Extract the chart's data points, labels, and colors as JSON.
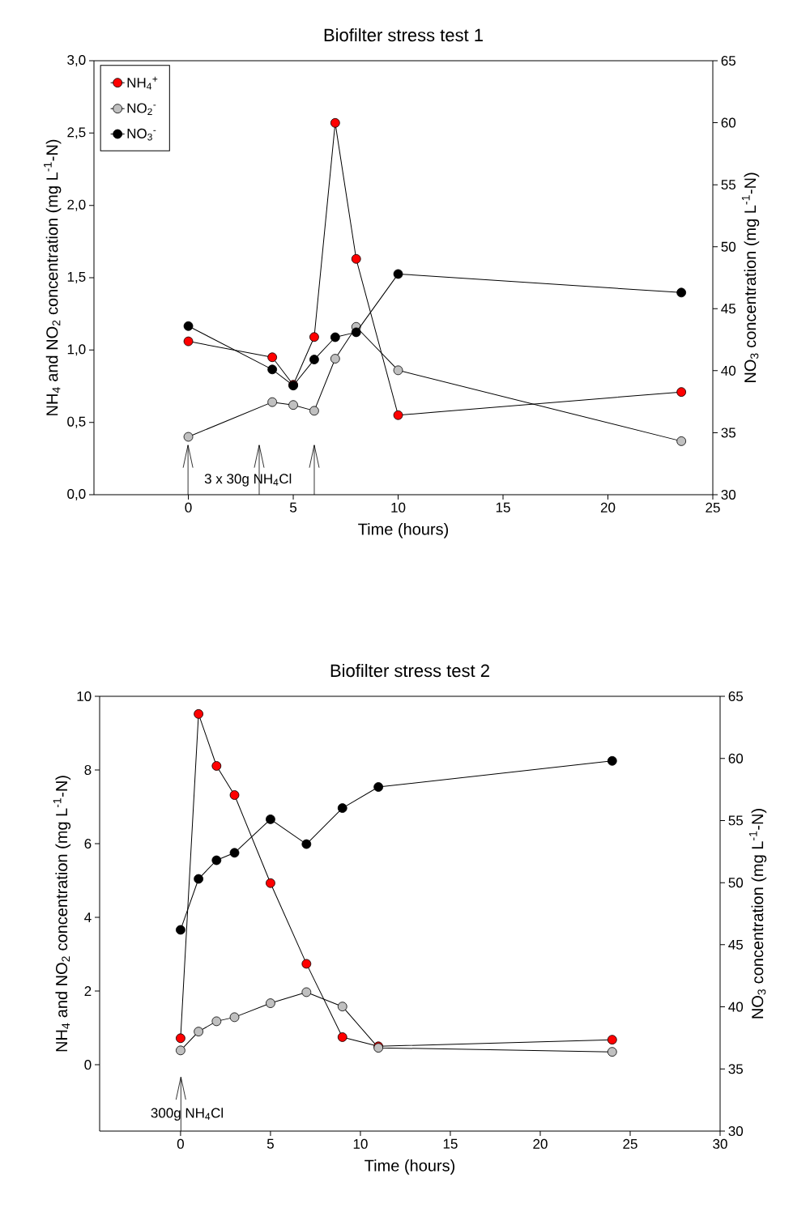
{
  "chart_data": [
    {
      "type": "line",
      "title": "Biofilter stress test 1",
      "xlabel": "Time (hours)",
      "ylabel": "NH$_{4}$ and NO$_{2}$ concentration (mg L$^{-1}$-N)",
      "y2label": "NO$_{3}$ concentration (mg L$^{-1}$-N)",
      "xlim": [
        -4.5,
        25
      ],
      "xticks": [
        0,
        5,
        10,
        15,
        20,
        25
      ],
      "ylim": [
        0,
        3
      ],
      "yticks": [
        {
          "value": 0,
          "label": "0,0"
        },
        {
          "value": 0.5,
          "label": "0,5"
        },
        {
          "value": 1,
          "label": "1,0"
        },
        {
          "value": 1.5,
          "label": "1,5"
        },
        {
          "value": 2,
          "label": "2,0"
        },
        {
          "value": 2.5,
          "label": "2,5"
        },
        {
          "value": 3,
          "label": "3,0"
        }
      ],
      "y2lim": [
        30,
        65
      ],
      "y2ticks": [
        30,
        35,
        40,
        45,
        50,
        55,
        60,
        65
      ],
      "marker": "circle",
      "line_style": "solid",
      "legend": "top left",
      "annotations": [
        "3 x 30g NH$_{4}$Cl"
      ],
      "x": [
        0,
        4,
        5,
        6,
        7,
        8,
        10,
        23.5
      ],
      "series": [
        {
          "name": "NH$_{4}$$^{+}$",
          "color": "#ff0000",
          "values": [
            1.06,
            0.95,
            0.76,
            1.09,
            2.57,
            1.63,
            0.55,
            0.71
          ]
        },
        {
          "name": "NO$_{2}$$^{-}$",
          "color": "#c0c0c0",
          "values": [
            0.4,
            0.64,
            0.62,
            0.58,
            0.94,
            1.16,
            0.86,
            0.37
          ]
        },
        {
          "name": "NO$_{3}$$^{-}$",
          "color": "#000000",
          "axis": "y2",
          "values": [
            43.6,
            40.1,
            38.8,
            40.9,
            42.7,
            43.1,
            47.8,
            46.3
          ]
        }
      ]
    },
    {
      "type": "line",
      "title": "Biofilter stress test 2",
      "xlabel": "Time (hours)",
      "ylabel": "NH$_{4}$ and NO$_{2}$ concentration (mg L$^{-1}$-N)",
      "y2label": "NO$_{3}$ concentration (mg L$^{-1}$-N)",
      "xlim": [
        -4.5,
        30
      ],
      "xticks": [
        0,
        5,
        10,
        15,
        20,
        25,
        30
      ],
      "ylim": [
        -1.8,
        10
      ],
      "yticks": [
        0,
        2,
        4,
        6,
        8,
        10
      ],
      "y2lim": [
        30,
        65
      ],
      "y2ticks": [
        30,
        35,
        40,
        45,
        50,
        55,
        60,
        65
      ],
      "marker": "circle",
      "line_style": "solid",
      "annotations": [
        "300g NH$_{4}$Cl"
      ],
      "x": [
        0,
        1,
        2,
        3,
        5,
        7,
        9,
        11,
        24
      ],
      "series": [
        {
          "color": "#ff0000",
          "values": [
            0.72,
            9.52,
            8.11,
            7.32,
            4.93,
            2.74,
            0.75,
            0.5,
            0.68
          ]
        },
        {
          "color": "#c0c0c0",
          "values": [
            0.39,
            0.9,
            1.18,
            1.29,
            1.67,
            1.97,
            1.58,
            0.46,
            0.35
          ]
        },
        {
          "color": "#000000",
          "axis": "y2",
          "values": [
            46.2,
            50.3,
            51.8,
            52.4,
            55.1,
            53.1,
            56.0,
            57.7,
            59.8
          ]
        }
      ]
    }
  ]
}
